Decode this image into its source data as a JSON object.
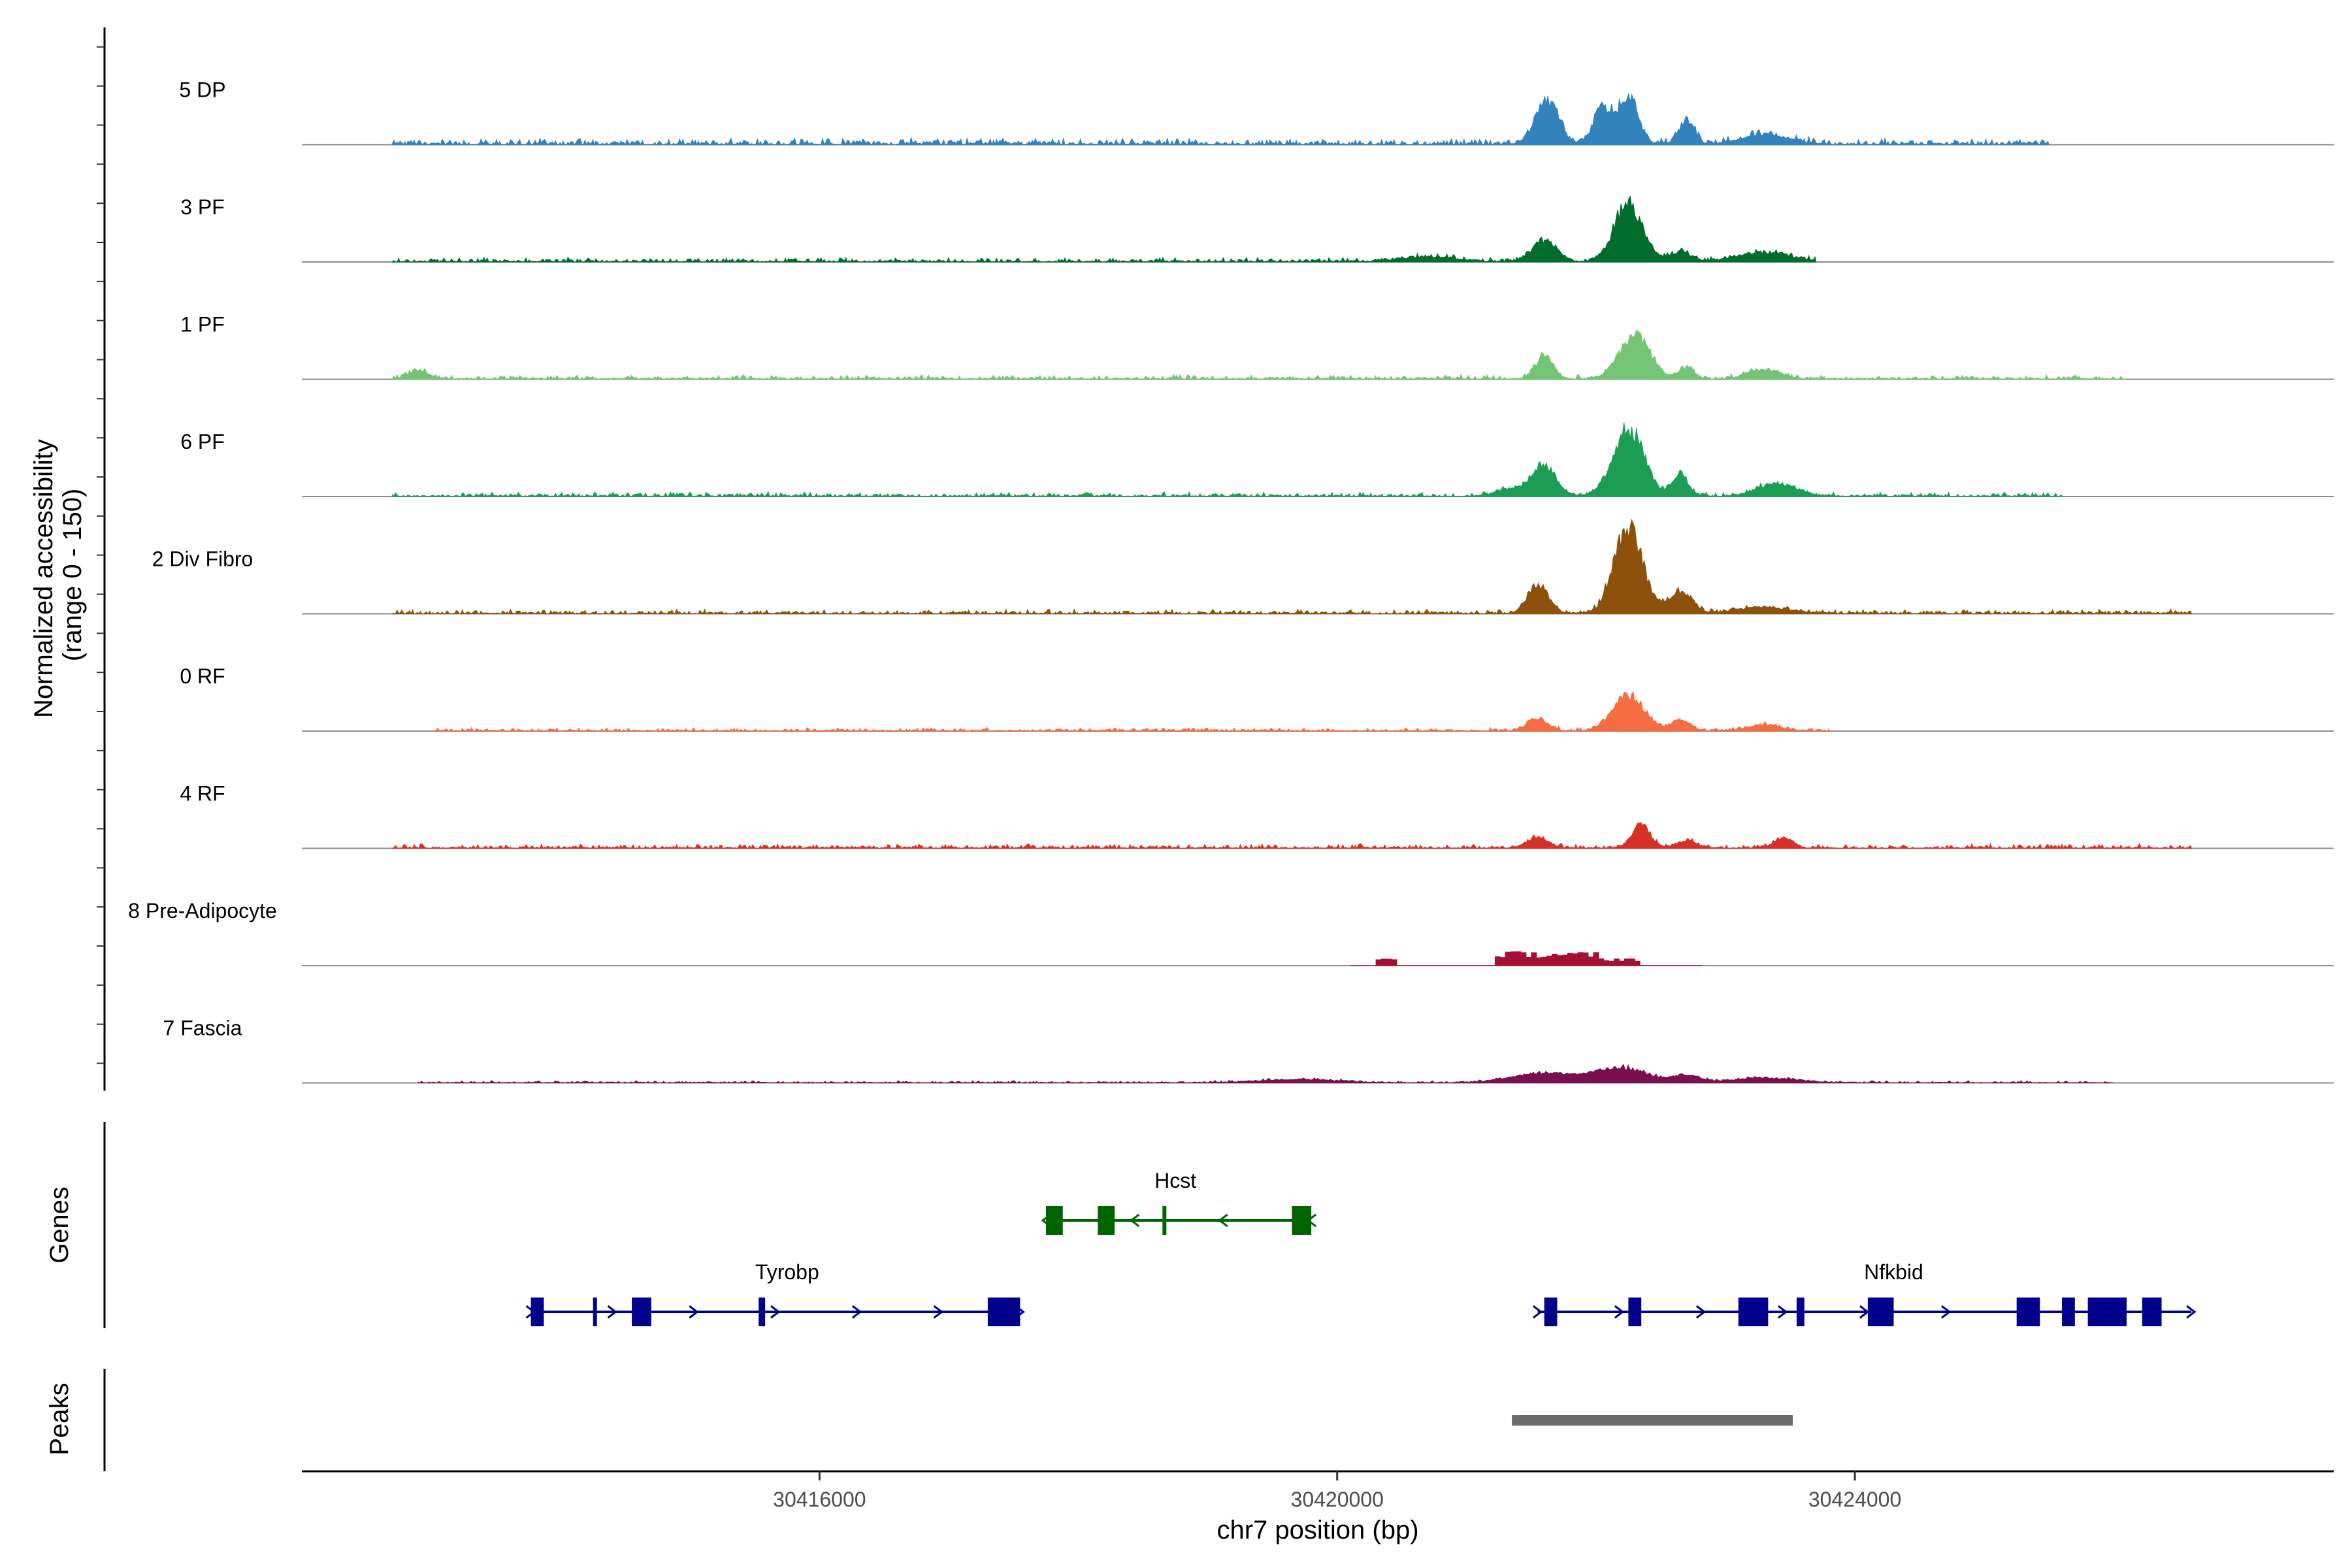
{
  "chart_data": {
    "type": "area",
    "title": "",
    "xlabel": "chr7 position (bp)",
    "ylabel_line1": "Normalized accessibility",
    "ylabel_line2": "(range 0 - 150)",
    "ylim": [
      0,
      150
    ],
    "xlim": [
      30412000,
      30427700
    ],
    "x_ticks": [
      {
        "value": 30416000,
        "label": "30416000"
      },
      {
        "value": 30420000,
        "label": "30420000"
      },
      {
        "value": 30424000,
        "label": "30424000"
      }
    ],
    "bg_start": 30412700,
    "bg_end": 30426600,
    "series": [
      {
        "name": "5 DP",
        "color": "#3182bd",
        "start": 30412700,
        "end": 30425500,
        "bg": 6,
        "peaks": [
          [
            30421620,
            55,
            90
          ],
          [
            30422250,
            60,
            75
          ],
          [
            30422050,
            45,
            70
          ],
          [
            30422700,
            28,
            60
          ],
          [
            30423300,
            12,
            180
          ]
        ]
      },
      {
        "name": "3 PF",
        "color": "#006d2c",
        "start": 30412700,
        "end": 30423700,
        "bg": 4,
        "peaks": [
          [
            30421600,
            28,
            90
          ],
          [
            30422250,
            72,
            110
          ],
          [
            30422650,
            12,
            80
          ],
          [
            30423300,
            12,
            200
          ],
          [
            30420700,
            6,
            200
          ]
        ]
      },
      {
        "name": "1 PF",
        "color": "#74c476",
        "start": 30412700,
        "end": 30426100,
        "bg": 4,
        "peaks": [
          [
            30421600,
            28,
            70
          ],
          [
            30422300,
            55,
            120
          ],
          [
            30422700,
            14,
            60
          ],
          [
            30423300,
            12,
            120
          ],
          [
            30412900,
            10,
            80
          ]
        ]
      },
      {
        "name": "6 PF",
        "color": "#1b9e54",
        "start": 30412700,
        "end": 30425600,
        "bg": 4,
        "peaks": [
          [
            30421600,
            40,
            90
          ],
          [
            30422250,
            85,
            120
          ],
          [
            30422650,
            30,
            60
          ],
          [
            30423400,
            16,
            150
          ],
          [
            30421350,
            10,
            100
          ]
        ]
      },
      {
        "name": "2 Div Fibro",
        "color": "#8c510a",
        "start": 30412700,
        "end": 30426600,
        "bg": 4,
        "peaks": [
          [
            30421550,
            35,
            80
          ],
          [
            30422250,
            110,
            110
          ],
          [
            30422650,
            28,
            90
          ],
          [
            30423300,
            8,
            200
          ]
        ]
      },
      {
        "name": "0 RF",
        "color": "#f46d43",
        "start": 30413000,
        "end": 30423800,
        "bg": 3,
        "peaks": [
          [
            30421550,
            16,
            80
          ],
          [
            30422250,
            45,
            120
          ],
          [
            30422650,
            14,
            70
          ],
          [
            30423300,
            8,
            120
          ]
        ]
      },
      {
        "name": "4 RF",
        "color": "#d73027",
        "start": 30412700,
        "end": 30426600,
        "bg": 4,
        "peaks": [
          [
            30421550,
            14,
            80
          ],
          [
            30422350,
            30,
            70
          ],
          [
            30422700,
            9,
            80
          ],
          [
            30423450,
            12,
            70
          ]
        ]
      },
      {
        "name": "8 Pre-Adipocyte",
        "color": "#a50f33",
        "start": 30420100,
        "end": 30422800,
        "bg": 0,
        "peaks": [
          [
            30420350,
            10,
            60
          ],
          [
            30421600,
            18,
            350
          ],
          [
            30422100,
            10,
            200
          ]
        ],
        "stepped": true
      },
      {
        "name": "7 Fascia",
        "color": "#7a0f4f",
        "start": 30412900,
        "end": 30426000,
        "bg": 2,
        "peaks": [
          [
            30421600,
            12,
            250
          ],
          [
            30422200,
            18,
            200
          ],
          [
            30422700,
            9,
            100
          ],
          [
            30423300,
            6,
            250
          ],
          [
            30419700,
            4,
            300
          ]
        ]
      }
    ],
    "genes_label": "Genes",
    "genes": [
      {
        "name": "Hcst",
        "color": "#006400",
        "start": 30417750,
        "end": 30419800,
        "strand": "-",
        "row": 0,
        "exons": [
          [
            30417750,
            30417880
          ],
          [
            30418150,
            30418280
          ],
          [
            30418650,
            30418680
          ],
          [
            30419650,
            30419800
          ]
        ]
      },
      {
        "name": "Tyrobp",
        "color": "#00008b",
        "start": 30413770,
        "end": 30417550,
        "strand": "+",
        "row": 1,
        "exons": [
          [
            30413770,
            30413870
          ],
          [
            30414250,
            30414280
          ],
          [
            30414550,
            30414700
          ],
          [
            30415530,
            30415580
          ],
          [
            30417300,
            30417550
          ]
        ]
      },
      {
        "name": "Nfkbid",
        "color": "#00008b",
        "start": 30421550,
        "end": 30426600,
        "strand": "+",
        "row": 1,
        "exons": [
          [
            30421600,
            30421700
          ],
          [
            30422250,
            30422350
          ],
          [
            30423100,
            30423330
          ],
          [
            30423550,
            30423610
          ],
          [
            30424100,
            30424300
          ],
          [
            30425250,
            30425430
          ],
          [
            30425600,
            30425700
          ],
          [
            30425800,
            30426100
          ],
          [
            30426220,
            30426370
          ]
        ]
      }
    ],
    "peaks_label": "Peaks",
    "peak_regions": [
      {
        "start": 30421350,
        "end": 30423520,
        "color": "#6b6b6b"
      }
    ]
  }
}
